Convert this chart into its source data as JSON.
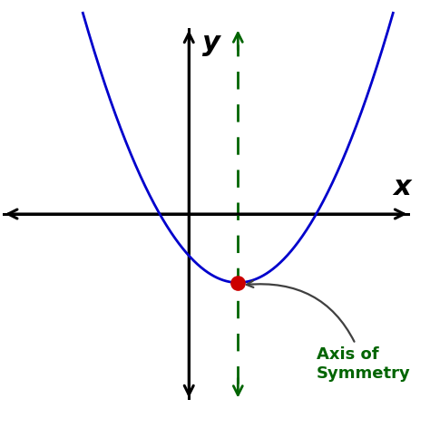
{
  "bg_color": "#ffffff",
  "parabola_color": "#0000cc",
  "axis_color": "#000000",
  "symmetry_line_color": "#006400",
  "vertex_color": "#cc0000",
  "label_color": "#006400",
  "annotation_arrow_color": "#404040",
  "vertex_x": 1.0,
  "vertex_y": -1.4,
  "parabola_a": 0.55,
  "x_axis_range": [
    -3.8,
    4.5
  ],
  "y_axis_range": [
    -3.8,
    3.8
  ],
  "x_label": "x",
  "y_label": "y",
  "annotation_text": "Axis of\nSymmetry",
  "annotation_fontsize": 13,
  "axis_label_fontsize": 22,
  "figsize": [
    4.74,
    4.72
  ],
  "dpi": 100
}
